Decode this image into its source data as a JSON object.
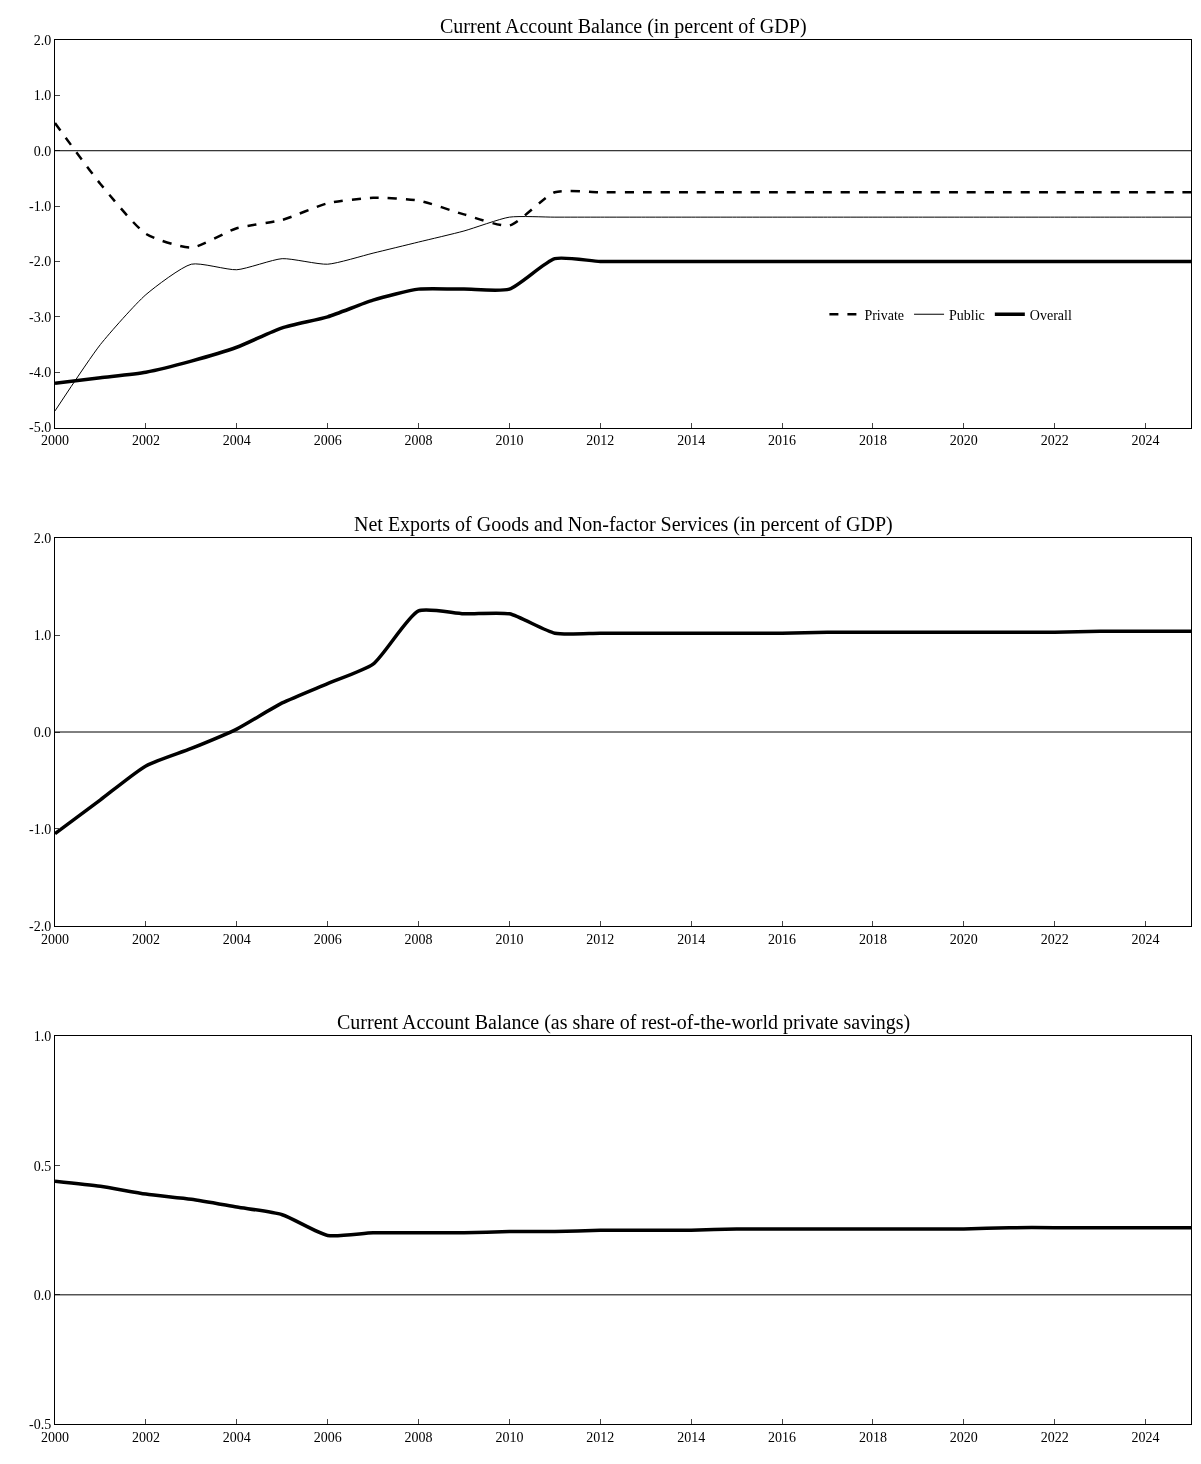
{
  "chart_data": [
    {
      "type": "line",
      "title": "Current Account Balance (in percent of GDP)",
      "x": [
        2000,
        2001,
        2002,
        2003,
        2004,
        2005,
        2006,
        2007,
        2008,
        2009,
        2010,
        2011,
        2012,
        2013,
        2014,
        2015,
        2016,
        2017,
        2018,
        2019,
        2020,
        2021,
        2022,
        2023,
        2024,
        2025
      ],
      "series": [
        {
          "name": "Private",
          "color": "#000000",
          "line_style": "dashed",
          "values": [
            0.5,
            -0.6,
            -1.5,
            -1.75,
            -1.4,
            -1.25,
            -0.95,
            -0.85,
            -0.9,
            -1.15,
            -1.35,
            -0.75,
            -0.75,
            -0.75,
            -0.75,
            -0.75,
            -0.75,
            -0.75,
            -0.75,
            -0.75,
            -0.75,
            -0.75,
            -0.75,
            -0.75,
            -0.75,
            -0.75
          ]
        },
        {
          "name": "Public",
          "color": "#000000",
          "line_style": "solid",
          "values": [
            -4.7,
            -3.5,
            -2.6,
            -2.05,
            -2.15,
            -1.95,
            -2.05,
            -1.85,
            -1.65,
            -1.45,
            -1.2,
            -1.2,
            -1.2,
            -1.2,
            -1.2,
            -1.2,
            -1.2,
            -1.2,
            -1.2,
            -1.2,
            -1.2,
            -1.2,
            -1.2,
            -1.2,
            -1.2,
            -1.2
          ]
        },
        {
          "name": "Overall",
          "color": "#000000",
          "line_style": "solid",
          "values": [
            -4.2,
            -4.1,
            -4.0,
            -3.8,
            -3.55,
            -3.2,
            -3.0,
            -2.7,
            -2.5,
            -2.5,
            -2.5,
            -1.95,
            -2.0,
            -2.0,
            -2.0,
            -2.0,
            -2.0,
            -2.0,
            -2.0,
            -2.0,
            -2.0,
            -2.0,
            -2.0,
            -2.0,
            -2.0,
            -2.0
          ]
        }
      ],
      "xlim": [
        2000,
        2025
      ],
      "xticks": [
        2000,
        2002,
        2004,
        2006,
        2008,
        2010,
        2012,
        2014,
        2016,
        2018,
        2020,
        2022,
        2024
      ],
      "ylim": [
        -5,
        2
      ],
      "yticks": [
        {
          "value": -5,
          "label": "-5.0"
        },
        {
          "value": -4,
          "label": "-4.0"
        },
        {
          "value": -3,
          "label": "-3.0"
        },
        {
          "value": -2,
          "label": "-2.0"
        },
        {
          "value": -1,
          "label": "-1.0"
        },
        {
          "value": 0,
          "label": "0.0"
        },
        {
          "value": 1,
          "label": "1.0"
        },
        {
          "value": 2,
          "label": "2.0"
        }
      ],
      "ref_lines": [
        {
          "axis": "y",
          "value": 0,
          "color": "#000000"
        }
      ],
      "legend": "bottom right"
    },
    {
      "type": "line",
      "title": "Net Exports of Goods and Non-factor Services (in percent of GDP)",
      "x": [
        2000,
        2001,
        2002,
        2003,
        2004,
        2005,
        2006,
        2007,
        2008,
        2009,
        2010,
        2011,
        2012,
        2013,
        2014,
        2015,
        2016,
        2017,
        2018,
        2019,
        2020,
        2021,
        2022,
        2023,
        2024,
        2025
      ],
      "series": [
        {
          "color": "#000000",
          "values": [
            -1.05,
            -0.7,
            -0.35,
            -0.17,
            0.03,
            0.3,
            0.5,
            0.7,
            1.25,
            1.22,
            1.22,
            1.02,
            1.02,
            1.02,
            1.02,
            1.02,
            1.02,
            1.03,
            1.03,
            1.03,
            1.03,
            1.03,
            1.03,
            1.04,
            1.04,
            1.04
          ]
        }
      ],
      "xlim": [
        2000,
        2025
      ],
      "xticks": [
        2000,
        2002,
        2004,
        2006,
        2008,
        2010,
        2012,
        2014,
        2016,
        2018,
        2020,
        2022,
        2024
      ],
      "ylim": [
        -2,
        2
      ],
      "yticks": [
        {
          "value": -2,
          "label": "-2.0"
        },
        {
          "value": -1,
          "label": "-1.0"
        },
        {
          "value": 0,
          "label": "0.0"
        },
        {
          "value": 1,
          "label": "1.0"
        },
        {
          "value": 2,
          "label": "2.0"
        }
      ],
      "ref_lines": [
        {
          "axis": "y",
          "value": 0,
          "color": "#000000"
        }
      ],
      "legend": false
    },
    {
      "type": "line",
      "title": "Current Account Balance (as share of rest-of-the-world private savings)",
      "x": [
        2000,
        2001,
        2002,
        2003,
        2004,
        2005,
        2006,
        2007,
        2008,
        2009,
        2010,
        2011,
        2012,
        2013,
        2014,
        2015,
        2016,
        2017,
        2018,
        2019,
        2020,
        2021,
        2022,
        2023,
        2024,
        2025
      ],
      "series": [
        {
          "color": "#000000",
          "values": [
            0.44,
            0.42,
            0.39,
            0.37,
            0.34,
            0.31,
            0.23,
            0.24,
            0.24,
            0.24,
            0.245,
            0.245,
            0.25,
            0.25,
            0.25,
            0.255,
            0.255,
            0.255,
            0.255,
            0.255,
            0.255,
            0.26,
            0.26,
            0.26,
            0.26,
            0.26
          ]
        }
      ],
      "xlim": [
        2000,
        2025
      ],
      "xticks": [
        2000,
        2002,
        2004,
        2006,
        2008,
        2010,
        2012,
        2014,
        2016,
        2018,
        2020,
        2022,
        2024
      ],
      "ylim": [
        -0.5,
        1
      ],
      "yticks": [
        {
          "value": -0.5,
          "label": "-0.5"
        },
        {
          "value": 0,
          "label": "0.0"
        },
        {
          "value": 0.5,
          "label": "0.5"
        },
        {
          "value": 1,
          "label": "1.0"
        }
      ],
      "ref_lines": [
        {
          "axis": "y",
          "value": 0,
          "color": "#000000"
        }
      ],
      "legend": false
    }
  ]
}
